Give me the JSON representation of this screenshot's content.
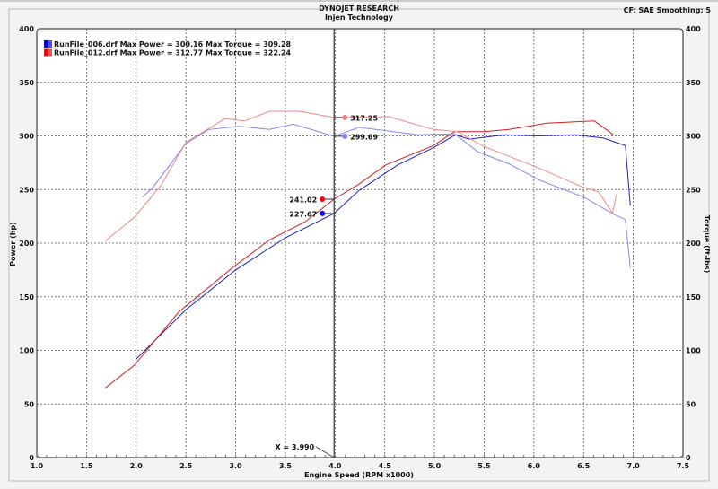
{
  "header": {
    "title": "DYNOJET RESEARCH",
    "subtitle": "Injen Technology",
    "cf": "CF: SAE  Smoothing: 5"
  },
  "chart_data": {
    "type": "line",
    "xlabel": "Engine Speed (RPM x1000)",
    "ylabel": "Power (hp)",
    "y2label": "Torque (ft-lbs)",
    "xlim": [
      1.0,
      7.5
    ],
    "ylim": [
      0,
      400
    ],
    "y2lim": [
      0,
      400
    ],
    "xticks": [
      "1.0",
      "1.5",
      "2.0",
      "2.5",
      "3.0",
      "3.5",
      "4.0",
      "4.5",
      "5.0",
      "5.5",
      "6.0",
      "6.5",
      "7.0",
      "7.5"
    ],
    "yticks": [
      "0",
      "50",
      "100",
      "150",
      "200",
      "250",
      "300",
      "350",
      "400"
    ],
    "grid": true,
    "legend_position": "top-left",
    "legend": [
      {
        "label": "RunFile_006.drf Max Power = 300.16 Max Torque = 309.28",
        "color": "#0000ff"
      },
      {
        "label": "RunFile_012.drf Max Power = 312.77 Max Torque = 322.24",
        "color": "#ff0000"
      }
    ],
    "cursor": {
      "x": 3.99,
      "label": "X = 3.990"
    },
    "cursor_values": [
      {
        "label": "317.25",
        "series": "torque_012",
        "color": "#f08080"
      },
      {
        "label": "299.69",
        "series": "torque_006",
        "color": "#8080ff"
      },
      {
        "label": "241.02",
        "series": "power_012",
        "color": "#ff0000"
      },
      {
        "label": "227.67",
        "series": "power_006",
        "color": "#0000ff"
      }
    ],
    "series": [
      {
        "id": "power_006",
        "color": "#2020c0",
        "x": [
          2.0,
          2.5,
          3.0,
          3.5,
          3.99,
          4.24,
          4.63,
          4.99,
          5.21,
          5.35,
          5.71,
          6.05,
          6.41,
          6.7,
          6.92,
          6.97
        ],
        "y": [
          92,
          138,
          175,
          205,
          227.67,
          249,
          273,
          289,
          301,
          297,
          301,
          300,
          301,
          298,
          291,
          235
        ]
      },
      {
        "id": "power_012",
        "color": "#d02020",
        "x": [
          1.69,
          1.98,
          2.43,
          2.98,
          3.34,
          3.7,
          3.99,
          4.24,
          4.51,
          4.99,
          5.2,
          5.5,
          5.75,
          6.13,
          6.61,
          6.8
        ],
        "y": [
          65,
          86,
          136,
          178,
          203,
          220,
          241.02,
          255,
          273,
          291,
          304,
          304,
          306,
          312,
          314,
          301
        ]
      },
      {
        "id": "torque_006",
        "color": "#8888ee",
        "x": [
          2.06,
          2.16,
          2.5,
          2.73,
          3.04,
          3.34,
          3.58,
          3.99,
          4.24,
          4.84,
          5.2,
          5.44,
          5.75,
          6.05,
          6.5,
          6.8,
          6.92,
          6.97
        ],
        "y": [
          243,
          251,
          293,
          306,
          309,
          306,
          311,
          299.69,
          308,
          301,
          302,
          285,
          274,
          259,
          243,
          227,
          222,
          177
        ]
      },
      {
        "id": "torque_012",
        "color": "#ee8888",
        "x": [
          1.69,
          1.98,
          2.25,
          2.5,
          2.89,
          3.09,
          3.34,
          3.64,
          3.99,
          4.54,
          4.99,
          5.23,
          5.5,
          5.75,
          6.05,
          6.5,
          6.65,
          6.79,
          6.83
        ],
        "y": [
          202,
          224,
          254,
          294,
          316,
          314,
          323,
          323,
          317.25,
          318,
          306,
          304,
          290,
          281,
          270,
          252,
          248,
          228,
          245
        ]
      }
    ]
  }
}
